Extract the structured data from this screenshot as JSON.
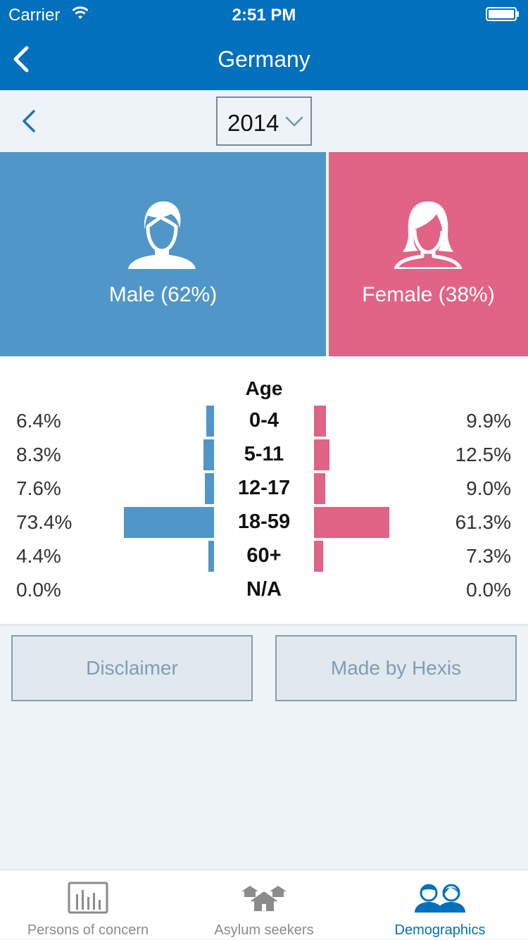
{
  "status_bar": {
    "carrier": "Carrier",
    "time": "2:51 PM"
  },
  "nav": {
    "title": "Germany"
  },
  "year_select": {
    "value": "2014"
  },
  "gender": {
    "male_label": "Male (62%)",
    "female_label": "Female (38%)",
    "male_fraction": 0.62,
    "female_fraction": 0.38
  },
  "age": {
    "title": "Age",
    "rows": [
      {
        "label": "0-4",
        "male": "6.4%",
        "female": "9.9%",
        "male_value": 6.4,
        "female_value": 9.9
      },
      {
        "label": "5-11",
        "male": "8.3%",
        "female": "12.5%",
        "male_value": 8.3,
        "female_value": 12.5
      },
      {
        "label": "12-17",
        "male": "7.6%",
        "female": "9.0%",
        "male_value": 7.6,
        "female_value": 9.0
      },
      {
        "label": "18-59",
        "male": "73.4%",
        "female": "61.3%",
        "male_value": 73.4,
        "female_value": 61.3
      },
      {
        "label": "60+",
        "male": "4.4%",
        "female": "7.3%",
        "male_value": 4.4,
        "female_value": 7.3
      },
      {
        "label": "N/A",
        "male": "0.0%",
        "female": "0.0%",
        "male_value": 0.0,
        "female_value": 0.0
      }
    ]
  },
  "buttons": {
    "disclaimer": "Disclaimer",
    "hexis": "Made by Hexis"
  },
  "tabs": [
    {
      "label": "Persons of concern",
      "icon": "bar-chart-icon",
      "active": false
    },
    {
      "label": "Asylum seekers",
      "icon": "tents-icon",
      "active": false
    },
    {
      "label": "Demographics",
      "icon": "people-icon",
      "active": true
    }
  ],
  "colors": {
    "primary": "#0170bd",
    "male": "#5196c8",
    "female": "#e16386",
    "background": "#eef3f7"
  }
}
